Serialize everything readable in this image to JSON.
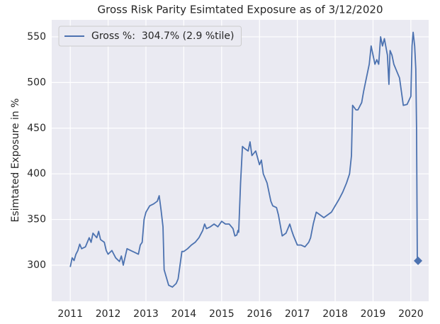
{
  "chart_data": {
    "type": "line",
    "title": "Gross Risk Parity Esimtated Exposure as of 3/12/2020",
    "y_label": "Esimtated Exposure in %",
    "x": [
      2011.0,
      2011.05,
      2011.1,
      2011.15,
      2011.2,
      2011.25,
      2011.3,
      2011.4,
      2011.5,
      2011.55,
      2011.6,
      2011.7,
      2011.75,
      2011.8,
      2011.9,
      2011.95,
      2012.0,
      2012.1,
      2012.2,
      2012.3,
      2012.35,
      2012.4,
      2012.5,
      2012.6,
      2012.7,
      2012.8,
      2012.85,
      2012.9,
      2012.95,
      2013.0,
      2013.1,
      2013.2,
      2013.3,
      2013.35,
      2013.4,
      2013.45,
      2013.48,
      2013.55,
      2013.6,
      2013.7,
      2013.8,
      2013.85,
      2013.9,
      2013.95,
      2014.0,
      2014.1,
      2014.2,
      2014.3,
      2014.4,
      2014.5,
      2014.55,
      2014.6,
      2014.7,
      2014.8,
      2014.9,
      2015.0,
      2015.1,
      2015.2,
      2015.3,
      2015.35,
      2015.4,
      2015.43,
      2015.45,
      2015.5,
      2015.55,
      2015.6,
      2015.7,
      2015.75,
      2015.8,
      2015.9,
      2016.0,
      2016.05,
      2016.1,
      2016.2,
      2016.3,
      2016.35,
      2016.45,
      2016.5,
      2016.6,
      2016.7,
      2016.8,
      2016.85,
      2016.9,
      2017.0,
      2017.1,
      2017.2,
      2017.3,
      2017.35,
      2017.42,
      2017.5,
      2017.6,
      2017.7,
      2017.8,
      2017.9,
      2018.0,
      2018.1,
      2018.2,
      2018.3,
      2018.38,
      2018.43,
      2018.46,
      2018.55,
      2018.6,
      2018.7,
      2018.75,
      2018.8,
      2018.85,
      2018.9,
      2018.95,
      2019.0,
      2019.05,
      2019.1,
      2019.15,
      2019.2,
      2019.25,
      2019.3,
      2019.38,
      2019.42,
      2019.45,
      2019.5,
      2019.55,
      2019.6,
      2019.7,
      2019.75,
      2019.8,
      2019.9,
      2020.0,
      2020.03,
      2020.06,
      2020.1,
      2020.13,
      2020.15,
      2020.17,
      2020.19
    ],
    "series": [
      {
        "name": "Gross %:  304.7% (2.9 %tile)",
        "color": "#4c72b0",
        "values": [
          298,
          308,
          305,
          312,
          316,
          323,
          318,
          320,
          330,
          325,
          335,
          330,
          337,
          328,
          325,
          316,
          312,
          316,
          308,
          304,
          310,
          300,
          318,
          316,
          314,
          312,
          322,
          325,
          350,
          358,
          365,
          367,
          370,
          376,
          360,
          342,
          295,
          285,
          278,
          276,
          280,
          285,
          300,
          315,
          315,
          318,
          322,
          325,
          330,
          338,
          345,
          340,
          342,
          345,
          342,
          348,
          345,
          345,
          340,
          332,
          333,
          338,
          336,
          390,
          430,
          428,
          425,
          435,
          420,
          425,
          410,
          415,
          400,
          390,
          370,
          365,
          363,
          355,
          332,
          335,
          345,
          338,
          332,
          322,
          322,
          320,
          325,
          330,
          345,
          358,
          355,
          352,
          355,
          358,
          365,
          372,
          380,
          390,
          400,
          420,
          475,
          470,
          470,
          478,
          490,
          500,
          510,
          520,
          540,
          530,
          520,
          525,
          520,
          550,
          540,
          548,
          530,
          498,
          535,
          530,
          520,
          515,
          505,
          490,
          475,
          476,
          485,
          540,
          555,
          540,
          515,
          450,
          305,
          304.7
        ]
      }
    ],
    "marker_last": "diamond",
    "xlim": [
      2010.51,
      2020.47
    ],
    "ylim": [
      260.4,
      568.6
    ],
    "xticks": [
      2011,
      2012,
      2013,
      2014,
      2015,
      2016,
      2017,
      2018,
      2019,
      2020
    ],
    "yticks": [
      300,
      350,
      400,
      450,
      500,
      550
    ],
    "grid": true,
    "background": "#eaeaf2",
    "legend": "upper left"
  }
}
